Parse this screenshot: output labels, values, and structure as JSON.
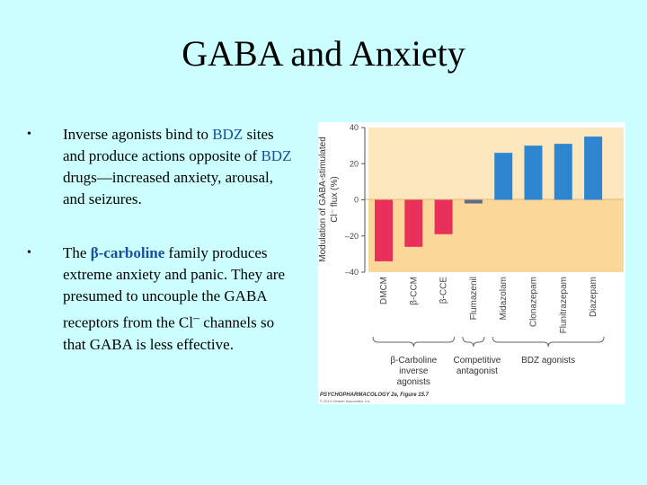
{
  "slide": {
    "title": "GABA and Anxiety",
    "bullet1": {
      "p1": "Inverse agonists bind to ",
      "k1": "BDZ",
      "p2": " sites and produce actions opposite of ",
      "k2": "BDZ",
      "p3": " drugs—increased anxiety, arousal, and seizures."
    },
    "bullet2": {
      "p1": "The ",
      "k1": "β-carboline",
      "p2": " family produces extreme anxiety and panic. They are presumed to uncouple the GABA receptors from the Cl",
      "sup": "–",
      "p3": " channels so that GABA is less effective."
    }
  },
  "chart_data": {
    "type": "bar",
    "ylabel_line1": "Modulation of GABA-stimulated",
    "ylabel_line2": "Cl⁻ flux (%)",
    "ylim": [
      -40,
      40
    ],
    "yticks": [
      "40",
      "20",
      "0",
      "–20",
      "–40"
    ],
    "categories": [
      "DMCM",
      "β-CCM",
      "β-CCE",
      "Flumazenil",
      "Midazolam",
      "Clonazepam",
      "Flunitrazepam",
      "Diazepam"
    ],
    "values": [
      -34,
      -26,
      -19,
      -2,
      26,
      30,
      31,
      35
    ],
    "bar_colors": [
      "#e8305a",
      "#e8305a",
      "#e8305a",
      "#5f6b8a",
      "#2f86d0",
      "#2f86d0",
      "#2f86d0",
      "#2f86d0"
    ],
    "groups": [
      "β-Carboline inverse agonists",
      "Competitive antagonist",
      "BDZ agonists"
    ],
    "groups_lines": [
      [
        "β-Carboline",
        "inverse",
        "agonists"
      ],
      [
        "Competitive",
        "antagonist"
      ],
      [
        "BDZ agonists"
      ]
    ],
    "credit": "PSYCHOPHARMACOLOGY 2e, Figure 15.7",
    "copyright": "© 2014 Sinauer Associates, Inc."
  }
}
